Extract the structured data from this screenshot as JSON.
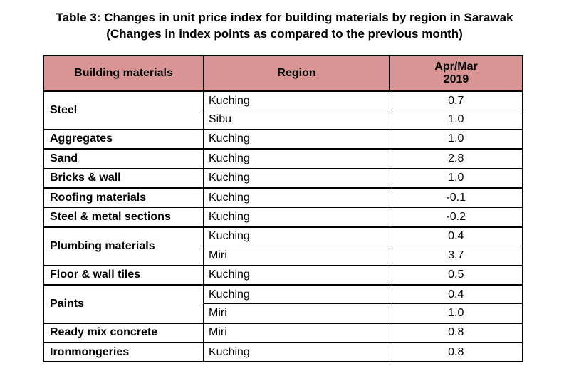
{
  "title": {
    "line1": "Table 3: Changes in unit price index for building materials by region in Sarawak",
    "line2": "(Changes in index points as compared to the previous month)"
  },
  "table": {
    "headers": {
      "material": "Building materials",
      "region": "Region",
      "period_line1": "Apr/Mar",
      "period_line2": "2019"
    },
    "groups": [
      {
        "material": "Steel",
        "rows": [
          {
            "region": "Kuching",
            "value": "0.7"
          },
          {
            "region": "Sibu",
            "value": "1.0"
          }
        ]
      },
      {
        "material": "Aggregates",
        "rows": [
          {
            "region": "Kuching",
            "value": "1.0"
          }
        ]
      },
      {
        "material": "Sand",
        "rows": [
          {
            "region": "Kuching",
            "value": "2.8"
          }
        ]
      },
      {
        "material": "Bricks & wall",
        "rows": [
          {
            "region": "Kuching",
            "value": "1.0"
          }
        ]
      },
      {
        "material": "Roofing materials",
        "rows": [
          {
            "region": "Kuching",
            "value": "-0.1"
          }
        ]
      },
      {
        "material": "Steel & metal sections",
        "rows": [
          {
            "region": "Kuching",
            "value": "-0.2"
          }
        ]
      },
      {
        "material": "Plumbing materials",
        "rows": [
          {
            "region": "Kuching",
            "value": "0.4"
          },
          {
            "region": "Miri",
            "value": "3.7"
          }
        ]
      },
      {
        "material": "Floor & wall tiles",
        "rows": [
          {
            "region": "Kuching",
            "value": "0.5"
          }
        ]
      },
      {
        "material": "Paints",
        "rows": [
          {
            "region": "Kuching",
            "value": "0.4"
          },
          {
            "region": "Miri",
            "value": "1.0"
          }
        ]
      },
      {
        "material": "Ready mix concrete",
        "rows": [
          {
            "region": "Miri",
            "value": "0.8"
          }
        ]
      },
      {
        "material": "Ironmongeries",
        "rows": [
          {
            "region": "Kuching",
            "value": "0.8"
          }
        ]
      }
    ]
  }
}
